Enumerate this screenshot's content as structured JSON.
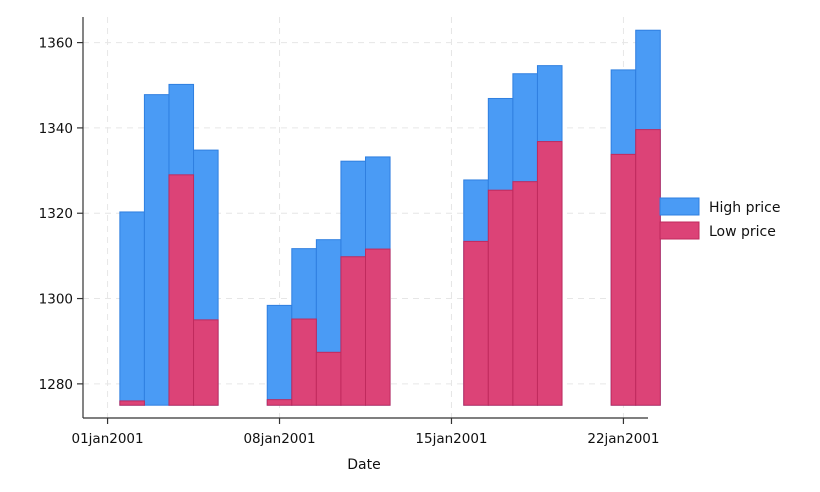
{
  "chart_data": {
    "type": "bar",
    "xlabel": "Date",
    "ylabel": "",
    "ylim": [
      1272,
      1366
    ],
    "yticks": [
      1280,
      1300,
      1320,
      1340,
      1360
    ],
    "xlim": [
      "2000-12-31",
      "2001-01-23"
    ],
    "xticks": [
      {
        "date": "2001-01-01",
        "label": "01jan2001"
      },
      {
        "date": "2001-01-08",
        "label": "08jan2001"
      },
      {
        "date": "2001-01-15",
        "label": "15jan2001"
      },
      {
        "date": "2001-01-22",
        "label": "22jan2001"
      }
    ],
    "bar_base": 1275,
    "grid": true,
    "legend_position": "right",
    "dates": [
      "2001-01-02",
      "2001-01-03",
      "2001-01-04",
      "2001-01-05",
      "2001-01-08",
      "2001-01-09",
      "2001-01-10",
      "2001-01-11",
      "2001-01-12",
      "2001-01-16",
      "2001-01-17",
      "2001-01-18",
      "2001-01-19",
      "2001-01-22",
      "2001-01-23"
    ],
    "series": [
      {
        "name": "High price",
        "color": "#4a9bf5",
        "stroke": "#2f7fe0",
        "values": [
          1320.3,
          1347.8,
          1350.2,
          1334.8,
          1298.4,
          1311.7,
          1313.8,
          1332.2,
          1333.2,
          1327.8,
          1346.9,
          1352.7,
          1354.6,
          1353.6,
          1362.9
        ]
      },
      {
        "name": "Low price",
        "color": "#dc4377",
        "stroke": "#c02a5d",
        "values": [
          1276.0,
          null,
          1329.0,
          1295.0,
          1276.3,
          1295.2,
          1287.4,
          1309.8,
          1311.6,
          1313.4,
          1325.4,
          1327.4,
          1336.8,
          1333.8,
          1339.6
        ]
      }
    ]
  }
}
